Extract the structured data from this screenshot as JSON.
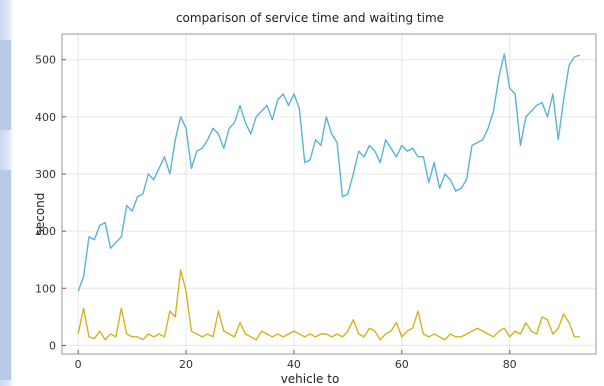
{
  "chart_data": {
    "type": "line",
    "title": "comparison of service time and waiting time",
    "xlabel": "vehicle to",
    "ylabel": "second",
    "xlim": [
      -3,
      96
    ],
    "ylim": [
      -15,
      545
    ],
    "grid": true,
    "xticks": [
      0,
      20,
      40,
      60,
      80
    ],
    "yticks": [
      0,
      100,
      200,
      300,
      400,
      500
    ],
    "series": [
      {
        "color": "#5ab4d6",
        "values": [
          95,
          120,
          190,
          185,
          210,
          215,
          170,
          180,
          190,
          245,
          235,
          260,
          265,
          300,
          290,
          310,
          330,
          300,
          360,
          400,
          380,
          310,
          340,
          345,
          360,
          380,
          370,
          345,
          380,
          390,
          420,
          390,
          370,
          400,
          410,
          420,
          395,
          430,
          440,
          420,
          440,
          415,
          320,
          325,
          360,
          350,
          400,
          370,
          355,
          260,
          265,
          300,
          340,
          330,
          350,
          340,
          320,
          360,
          345,
          330,
          350,
          340,
          345,
          330,
          330,
          285,
          320,
          275,
          300,
          290,
          270,
          275,
          290,
          350,
          355,
          360,
          380,
          410,
          470,
          510,
          450,
          440,
          350,
          400,
          410,
          420,
          425,
          400,
          440,
          360,
          430,
          490,
          505,
          508
        ]
      },
      {
        "color": "#d6b21f",
        "values": [
          20,
          65,
          15,
          12,
          25,
          10,
          20,
          15,
          65,
          20,
          15,
          15,
          10,
          20,
          15,
          20,
          15,
          60,
          50,
          132,
          95,
          25,
          20,
          15,
          20,
          15,
          60,
          25,
          20,
          15,
          40,
          20,
          15,
          10,
          25,
          20,
          15,
          20,
          15,
          20,
          25,
          20,
          15,
          20,
          15,
          20,
          20,
          15,
          20,
          15,
          25,
          45,
          20,
          15,
          30,
          25,
          10,
          20,
          25,
          40,
          15,
          25,
          30,
          60,
          20,
          15,
          20,
          15,
          10,
          20,
          15,
          15,
          20,
          25,
          30,
          25,
          20,
          15,
          25,
          30,
          15,
          25,
          20,
          40,
          25,
          20,
          50,
          45,
          20,
          30,
          55,
          40,
          15,
          15
        ]
      }
    ]
  }
}
